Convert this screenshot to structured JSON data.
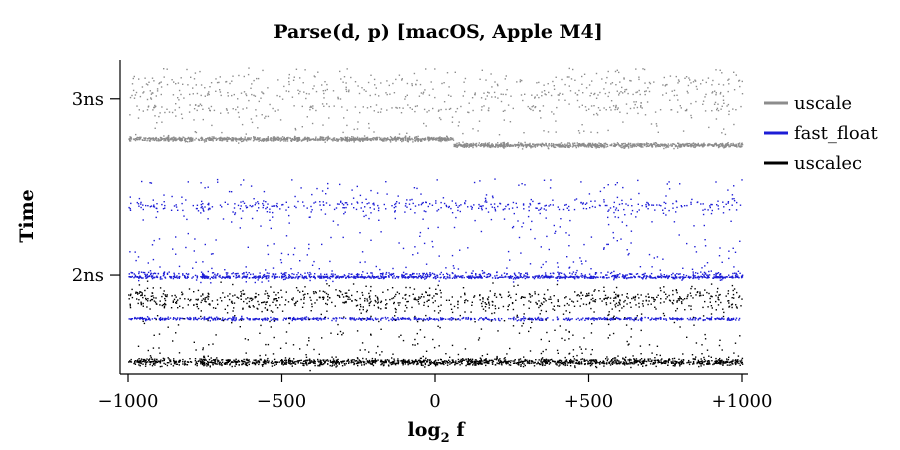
{
  "chart_data": {
    "type": "scatter",
    "title": "Parse(d, p) [macOS, Apple M4]",
    "xlabel": "log",
    "xlabel_sub": "2",
    "xlabel_tail": " f",
    "ylabel": "Time",
    "xlim": [
      -1000,
      1000
    ],
    "ylim": [
      1.45,
      3.22
    ],
    "x_ticks": [
      {
        "value": -1000,
        "label": "−1000"
      },
      {
        "value": -500,
        "label": "−500"
      },
      {
        "value": 0,
        "label": "0"
      },
      {
        "value": 500,
        "label": "+500"
      },
      {
        "value": 1000,
        "label": "+1000"
      }
    ],
    "y_ticks": [
      {
        "value": 2,
        "label": "2ns"
      },
      {
        "value": 3,
        "label": "3ns"
      }
    ],
    "grid": false,
    "legend_position": "right",
    "series": [
      {
        "name": "uscale",
        "color": "#8c8c8c",
        "bands": [
          {
            "x": [
              -1000,
              60
            ],
            "center": 2.775,
            "spread": 0.006,
            "weight": 0.55
          },
          {
            "x": [
              60,
              1000
            ],
            "center": 2.74,
            "spread": 0.006,
            "weight": 0.55
          },
          {
            "x": [
              -1000,
              1000
            ],
            "center": 3.03,
            "spread": 0.015,
            "weight": 0.1
          },
          {
            "x": [
              -1000,
              1000
            ],
            "center": 2.95,
            "spread": 0.015,
            "weight": 0.1
          },
          {
            "x": [
              -1000,
              1000
            ],
            "center": 3.1,
            "spread": 0.02,
            "weight": 0.07
          }
        ],
        "scatter_range": [
          2.8,
          3.18
        ],
        "scatter_weight": 0.18
      },
      {
        "name": "fast_float",
        "color": "#1c1cd6",
        "bands": [
          {
            "x": [
              -1000,
              1000
            ],
            "center": 1.992,
            "spread": 0.004,
            "weight": 0.3
          },
          {
            "x": [
              -1000,
              1000
            ],
            "center": 2.01,
            "spread": 0.006,
            "weight": 0.1
          },
          {
            "x": [
              -1000,
              1000
            ],
            "center": 1.755,
            "spread": 0.004,
            "weight": 0.28
          },
          {
            "x": [
              -1000,
              1000
            ],
            "center": 2.395,
            "spread": 0.018,
            "weight": 0.15
          }
        ],
        "scatter_range": [
          1.96,
          2.55
        ],
        "scatter_weight": 0.17
      },
      {
        "name": "uscalec",
        "color": "#000000",
        "bands": [
          {
            "x": [
              -1000,
              1000
            ],
            "center": 1.51,
            "spread": 0.01,
            "weight": 0.55
          },
          {
            "x": [
              -1000,
              1000
            ],
            "center": 1.865,
            "spread": 0.035,
            "weight": 0.3
          }
        ],
        "scatter_range": [
          1.5,
          1.9
        ],
        "scatter_weight": 0.15
      }
    ]
  }
}
